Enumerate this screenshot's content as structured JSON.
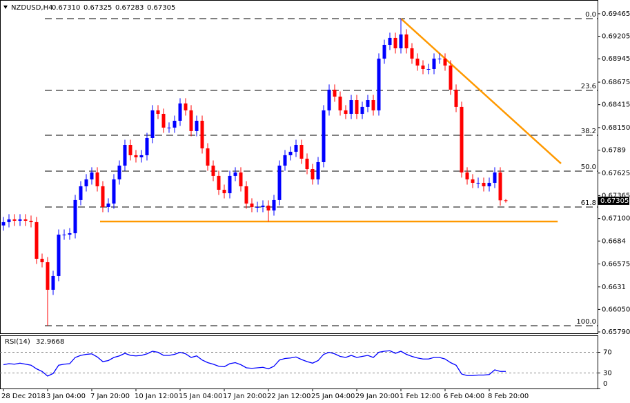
{
  "chart_data": {
    "type": "candlestick",
    "symbol": "NZDUSD,H4",
    "header_labels": [
      "0.67310",
      "0.67325",
      "0.67283",
      "0.67305"
    ],
    "up_color": "#0000ff",
    "down_color": "#ff0000",
    "open": [
      0.6702,
      0.67058,
      0.6709,
      0.67074,
      0.6709,
      0.67074,
      0.67058,
      0.66635,
      0.66595,
      0.66277,
      0.66436,
      0.66914,
      0.66914,
      0.6693,
      0.67313,
      0.67472,
      0.67552,
      0.67632,
      0.67472,
      0.67233,
      0.67273,
      0.67552,
      0.67711,
      0.6795,
      0.67831,
      0.67807,
      0.67831,
      0.6803,
      0.68349,
      0.68309,
      0.6815,
      0.6815,
      0.68229,
      0.68429,
      0.68349,
      0.6811,
      0.68229,
      0.6791,
      0.67711,
      0.67592,
      0.67432,
      0.67392,
      0.67592,
      0.67632,
      0.67472,
      0.67273,
      0.67233,
      0.67233,
      0.67249,
      0.67193,
      0.67313,
      0.67711,
      0.67831,
      0.67871,
      0.6795,
      0.67791,
      0.67671,
      0.67552,
      0.67751,
      0.68349,
      0.68588,
      0.68508,
      0.68349,
      0.68309,
      0.68468,
      0.68309,
      0.68389,
      0.68468,
      0.68349,
      0.68947,
      0.69106,
      0.69186,
      0.69066,
      0.69226,
      0.69066,
      0.68947,
      0.68867,
      0.68827,
      0.68827,
      0.68947,
      0.68947,
      0.68867,
      0.68588,
      0.68389,
      0.67632,
      0.67552,
      0.67512,
      0.67512,
      0.67472,
      0.67512,
      0.67632,
      0.6731
    ],
    "high": [
      0.67118,
      0.6715,
      0.6715,
      0.6715,
      0.6715,
      0.67134,
      0.67118,
      0.66695,
      0.66655,
      0.66496,
      0.66974,
      0.66974,
      0.6699,
      0.67373,
      0.67532,
      0.67612,
      0.67692,
      0.67692,
      0.67532,
      0.67333,
      0.67612,
      0.67771,
      0.6801,
      0.6801,
      0.67891,
      0.67891,
      0.6809,
      0.68409,
      0.68409,
      0.68369,
      0.6821,
      0.68289,
      0.68489,
      0.68489,
      0.68409,
      0.68289,
      0.68289,
      0.6797,
      0.67771,
      0.67652,
      0.67492,
      0.67652,
      0.67692,
      0.67692,
      0.67532,
      0.67333,
      0.67293,
      0.67309,
      0.67309,
      0.67373,
      0.67771,
      0.67891,
      0.67931,
      0.6801,
      0.6801,
      0.67851,
      0.67731,
      0.67811,
      0.68409,
      0.68648,
      0.68648,
      0.68568,
      0.68409,
      0.68528,
      0.68528,
      0.68449,
      0.68528,
      0.68528,
      0.69007,
      0.69166,
      0.69246,
      0.69246,
      0.69409,
      0.69286,
      0.69126,
      0.69007,
      0.68927,
      0.68887,
      0.69007,
      0.69007,
      0.69007,
      0.68927,
      0.68648,
      0.68449,
      0.67692,
      0.67612,
      0.67572,
      0.67572,
      0.67572,
      0.67692,
      0.67692,
      0.67325
    ],
    "low": [
      0.6696,
      0.66998,
      0.67014,
      0.67014,
      0.67014,
      0.66998,
      0.66575,
      0.66535,
      0.65862,
      0.66217,
      0.66376,
      0.66854,
      0.66854,
      0.6687,
      0.67253,
      0.67412,
      0.67492,
      0.67412,
      0.67173,
      0.67173,
      0.67213,
      0.67492,
      0.67651,
      0.67771,
      0.67747,
      0.67747,
      0.67771,
      0.6797,
      0.68249,
      0.6809,
      0.6809,
      0.6809,
      0.68169,
      0.68289,
      0.6805,
      0.6805,
      0.6785,
      0.67651,
      0.67532,
      0.67372,
      0.67332,
      0.67332,
      0.67532,
      0.67412,
      0.67213,
      0.67173,
      0.67173,
      0.67173,
      0.67065,
      0.67133,
      0.67253,
      0.67651,
      0.67771,
      0.67811,
      0.67731,
      0.67611,
      0.67492,
      0.67492,
      0.67691,
      0.68289,
      0.68448,
      0.68289,
      0.68249,
      0.68249,
      0.68249,
      0.68249,
      0.68329,
      0.68289,
      0.68289,
      0.68887,
      0.69046,
      0.69006,
      0.69006,
      0.69006,
      0.68887,
      0.68807,
      0.68767,
      0.68767,
      0.68767,
      0.68887,
      0.68807,
      0.68528,
      0.68329,
      0.67572,
      0.67492,
      0.67452,
      0.67452,
      0.67412,
      0.67412,
      0.67452,
      0.6725,
      0.67283
    ],
    "close": [
      0.67058,
      0.6709,
      0.67074,
      0.6709,
      0.67074,
      0.67058,
      0.66635,
      0.66595,
      0.66277,
      0.66436,
      0.66914,
      0.66914,
      0.6693,
      0.67313,
      0.67472,
      0.67552,
      0.67632,
      0.67472,
      0.67233,
      0.67273,
      0.67552,
      0.67711,
      0.6795,
      0.67831,
      0.67807,
      0.67831,
      0.6803,
      0.68349,
      0.68309,
      0.6815,
      0.6815,
      0.68229,
      0.68429,
      0.68349,
      0.6811,
      0.68229,
      0.6791,
      0.67711,
      0.67592,
      0.67432,
      0.67392,
      0.67592,
      0.67632,
      0.67472,
      0.67273,
      0.67233,
      0.67233,
      0.67249,
      0.67193,
      0.67313,
      0.67711,
      0.67831,
      0.67871,
      0.6795,
      0.67791,
      0.67671,
      0.67552,
      0.67751,
      0.68349,
      0.68588,
      0.68508,
      0.68349,
      0.68309,
      0.68468,
      0.68309,
      0.68389,
      0.68468,
      0.68349,
      0.68947,
      0.69106,
      0.69186,
      0.69066,
      0.69226,
      0.69066,
      0.68947,
      0.68867,
      0.68827,
      0.68827,
      0.68947,
      0.68947,
      0.68867,
      0.68588,
      0.68389,
      0.67632,
      0.67552,
      0.67512,
      0.67512,
      0.67472,
      0.67512,
      0.67632,
      0.6731,
      0.67305
    ],
    "ylim": [
      0.6579,
      0.69584
    ],
    "yticks": [
      0.69465,
      0.69205,
      0.68945,
      0.68675,
      0.68415,
      {
        "value": 0.6815,
        "label": "0.68150"
      },
      0.6789,
      0.67625,
      0.67365,
      {
        "value": 0.671,
        "label": "0.67100"
      },
      0.6684,
      0.66575,
      0.6631,
      {
        "value": 0.6605,
        "label": "0.66050"
      },
      {
        "value": 0.6579,
        "label": "0.65790"
      }
    ],
    "fib": {
      "color": "#000000",
      "levels": [
        {
          "label": "0.0",
          "value": 0.69409
        },
        {
          "label": "23.6",
          "value": 0.6858
        },
        {
          "label": "38.2",
          "value": 0.68062
        },
        {
          "label": "50.0",
          "value": 0.67647
        },
        {
          "label": "61.8",
          "value": 0.67233
        },
        {
          "label": "100.0",
          "value": 0.65862
        }
      ]
    },
    "trendlines": {
      "color": "#ff9900",
      "lines": [
        {
          "x": [
            72,
            101
          ],
          "y": [
            0.69409,
            0.67735
          ]
        },
        {
          "x": [
            17.5,
            100.4
          ],
          "y": [
            0.67065,
            0.67065
          ]
        }
      ]
    },
    "xtick_labels": [
      "28 Dec 2018",
      "3 Jan 04:00",
      "7 Jan 20:00",
      "10 Jan 12:00",
      "15 Jan 04:00",
      "17 Jan 20:00",
      "22 Jan 12:00",
      "25 Jan 04:00",
      "29 Jan 20:00",
      "1 Feb 12:00",
      "6 Feb 04:00",
      "8 Feb 20:00"
    ],
    "rsi": {
      "title": "RSI(14)",
      "color": "#0000ff",
      "ylim": [
        0,
        100
      ],
      "yticks": [
        70,
        30,
        0
      ],
      "values": [
        46,
        48,
        47,
        49,
        47,
        45,
        38,
        33,
        24,
        29,
        45,
        47,
        48,
        60,
        64,
        66,
        67,
        61,
        52,
        54,
        60,
        63,
        68,
        64,
        63,
        64,
        67,
        72,
        70,
        64,
        64,
        66,
        70,
        67,
        60,
        63,
        55,
        50,
        47,
        43,
        42,
        48,
        50,
        46,
        40,
        39,
        40,
        41,
        38,
        43,
        55,
        58,
        59,
        61,
        56,
        52,
        49,
        54,
        66,
        70,
        67,
        62,
        60,
        64,
        60,
        62,
        64,
        60,
        70,
        72,
        73,
        68,
        72,
        66,
        62,
        59,
        57,
        57,
        60,
        60,
        57,
        50,
        45,
        28,
        25,
        25,
        26,
        26,
        27,
        36,
        33,
        32.9668
      ]
    }
  }
}
